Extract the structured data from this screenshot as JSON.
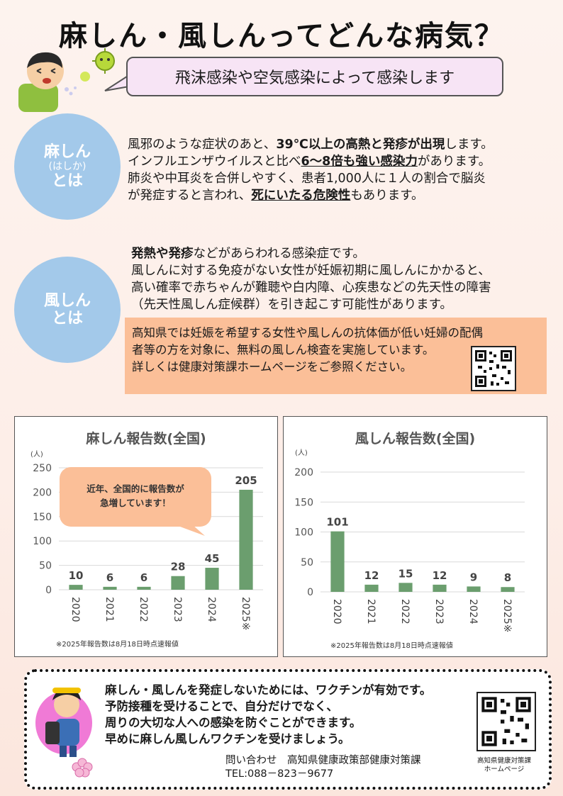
{
  "title": "麻しん・風しんってどんな病気？",
  "speech": "飛沫感染や空気感染によって感染します",
  "measles": {
    "circle": {
      "line1": "麻しん",
      "line2": "(はしか)",
      "line3": "とは"
    },
    "l1a": "風邪のような症状のあと、",
    "l1b": "39℃以上の高熱と発疹が出現",
    "l1c": "します。",
    "l2a": "インフルエンザウイルスと比べ",
    "l2b": "6～8倍も強い感染力",
    "l2c": "があります。",
    "l3": "肺炎や中耳炎を合併しやすく、患者1,000人に１人の割合で脳炎",
    "l4a": "が発症すると言われ、",
    "l4b": "死にいたる危険性",
    "l4c": "もあります。"
  },
  "rubella": {
    "circle": {
      "line1": "風しん",
      "line2": "とは"
    },
    "l1a": "発熱や発疹",
    "l1b": "などがあらわれる感染症です。",
    "l2": "風しんに対する免疫がない女性が妊娠初期に風しんにかかると、",
    "l3": "高い確率で赤ちゃんが難聴や白内障、心疾患などの先天性の障害",
    "l4": "（先天性風しん症候群）を引き起こす可能性があります。",
    "info1": "高知県では妊娠を希望する女性や風しんの抗体価が低い妊婦の配偶",
    "info2": "者等の方を対象に、無料の風しん検査を実施しています。",
    "info3": "詳しくは健康対策課ホームページをご参照ください。"
  },
  "colors": {
    "bar": "#6b9e6e",
    "circle": "#a3c9ea",
    "orange": "#fbbf98",
    "callout": "#fbbf98"
  },
  "chart_data": [
    {
      "type": "bar",
      "title": "麻しん報告数(全国)",
      "ylabel": "(人)",
      "categories": [
        "2020",
        "2021",
        "2022",
        "2023",
        "2024",
        "2025※"
      ],
      "values": [
        10,
        6,
        6,
        28,
        45,
        205
      ],
      "ylim": [
        0,
        250
      ],
      "yticks": [
        0,
        50,
        100,
        150,
        200,
        250
      ],
      "callout": {
        "line1": "近年、全国的に報告数が",
        "line2": "急増しています！"
      },
      "note": "※2025年報告数は8月18日時点速報値"
    },
    {
      "type": "bar",
      "title": "風しん報告数(全国)",
      "ylabel": "(人)",
      "categories": [
        "2020",
        "2021",
        "2022",
        "2023",
        "2024",
        "2025※"
      ],
      "values": [
        101,
        12,
        15,
        12,
        9,
        8
      ],
      "ylim": [
        0,
        200
      ],
      "yticks": [
        0,
        50,
        100,
        150,
        200
      ],
      "note": "※2025年報告数は8月18日時点速報値"
    }
  ],
  "bottom": {
    "line1": "麻しん・風しんを発症しないためには、ワクチンが有効です。",
    "line2": "予防接種を受けることで、自分だけでなく、",
    "line3": "周りの大切な人への感染を防ぐことができます。",
    "line4": "早めに麻しん風しんワクチンを受けましょう。",
    "contact": "問い合わせ　高知県健康政策部健康対策課",
    "tel": "TEL:088－823－9677",
    "qr_label1": "高知県健康対策課",
    "qr_label2": "ホームページ"
  }
}
